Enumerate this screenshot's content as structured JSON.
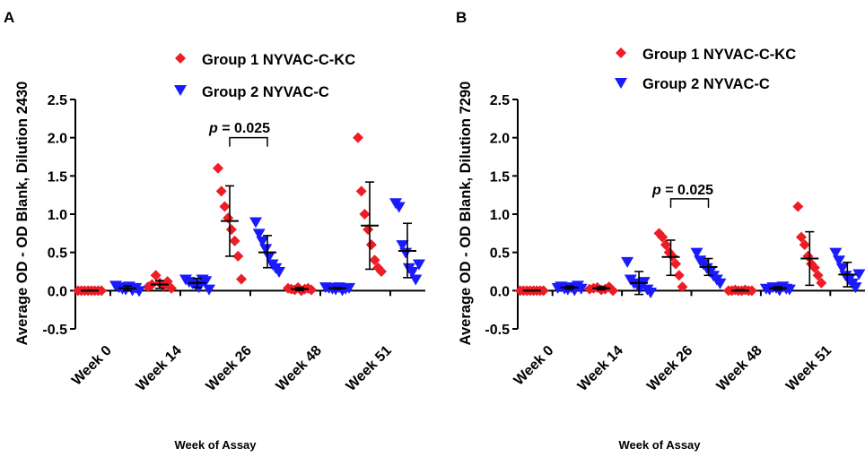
{
  "colors": {
    "group1": "#ee1c25",
    "group2": "#1a1aff",
    "axis": "#000000",
    "errorbar": "#000000"
  },
  "chart_data": [
    {
      "panel": "A",
      "type": "scatter",
      "xlabel": "Week of Assay",
      "ylabel": "Average OD - OD Blank, Dilution 2430",
      "categories": [
        "Week 0",
        "Week 14",
        "Week 26",
        "Week 48",
        "Week 51"
      ],
      "ylim": [
        -0.5,
        2.5
      ],
      "yticks": [
        "-0.5",
        "0.0",
        "0.5",
        "1.0",
        "1.5",
        "2.0",
        "2.5"
      ],
      "legend_position": "top-right",
      "series": [
        {
          "name": "Group 1 NYVAC-C-KC",
          "marker": "diamond",
          "color": "#ee1c25",
          "points": [
            [
              0.0,
              0.0,
              0.0,
              0.0,
              0.0,
              0.0,
              0.0,
              0.0
            ],
            [
              0.05,
              0.08,
              0.2,
              0.1,
              0.06,
              0.12,
              0.03
            ],
            [
              1.6,
              1.3,
              1.1,
              0.95,
              0.8,
              0.65,
              0.45,
              0.15
            ],
            [
              0.03,
              0.02,
              0.01,
              0.04,
              0.0,
              0.02,
              0.03,
              0.01
            ],
            [
              2.0,
              1.3,
              1.0,
              0.8,
              0.6,
              0.4,
              0.3,
              0.25
            ]
          ],
          "mean": [
            0.0,
            0.08,
            0.91,
            0.02,
            0.85
          ],
          "sd_low": [
            0.0,
            0.03,
            0.45,
            0.0,
            0.28
          ],
          "sd_high": [
            0.0,
            0.13,
            1.37,
            0.04,
            1.42
          ]
        },
        {
          "name": "Group 2 NYVAC-C",
          "marker": "triangle-down",
          "color": "#1a1aff",
          "points": [
            [
              0.07,
              0.05,
              0.03,
              0.02,
              0.06,
              0.01,
              0.04,
              0.0
            ],
            [
              0.15,
              0.12,
              0.1,
              0.08,
              0.05,
              0.15,
              0.13,
              0.02
            ],
            [
              0.9,
              0.75,
              0.65,
              0.55,
              0.45,
              0.35,
              0.3,
              0.25
            ],
            [
              0.05,
              0.04,
              0.03,
              0.02,
              0.05,
              0.01,
              0.03,
              0.04
            ],
            [
              1.15,
              1.1,
              0.6,
              0.5,
              0.3,
              0.25,
              0.15,
              0.35
            ]
          ],
          "mean": [
            0.03,
            0.1,
            0.5,
            0.03,
            0.52
          ],
          "sd_low": [
            0.0,
            0.04,
            0.3,
            0.02,
            0.17
          ],
          "sd_high": [
            0.06,
            0.16,
            0.72,
            0.04,
            0.88
          ]
        }
      ],
      "annotation": {
        "text_italic": "p",
        "text": " = 0.025",
        "category_index": 2,
        "bracket_y": 2.0
      }
    },
    {
      "panel": "B",
      "type": "scatter",
      "xlabel": "Week of Assay",
      "ylabel": "Average OD - OD Blank, Dilution 7290",
      "categories": [
        "Week 0",
        "Week 14",
        "Week 26",
        "Week 48",
        "Week 51"
      ],
      "ylim": [
        -0.5,
        2.5
      ],
      "yticks": [
        "-0.5",
        "0.0",
        "0.5",
        "1.0",
        "1.5",
        "2.0",
        "2.5"
      ],
      "legend_position": "top-right",
      "series": [
        {
          "name": "Group 1 NYVAC-C-KC",
          "marker": "diamond",
          "color": "#ee1c25",
          "points": [
            [
              0.0,
              0.0,
              0.0,
              0.0,
              0.0,
              0.0,
              0.0,
              0.0
            ],
            [
              0.02,
              0.03,
              0.04,
              0.01,
              0.02,
              0.05,
              0.0
            ],
            [
              0.75,
              0.7,
              0.6,
              0.5,
              0.45,
              0.35,
              0.2,
              0.05
            ],
            [
              0.0,
              0.0,
              0.01,
              0.0,
              0.0,
              0.01,
              0.0,
              0.0
            ],
            [
              1.1,
              0.7,
              0.6,
              0.45,
              0.35,
              0.3,
              0.2,
              0.1
            ]
          ],
          "mean": [
            0.0,
            0.03,
            0.44,
            0.0,
            0.42
          ],
          "sd_low": [
            0.0,
            0.01,
            0.2,
            0.0,
            0.07
          ],
          "sd_high": [
            0.0,
            0.05,
            0.66,
            0.01,
            0.77
          ]
        },
        {
          "name": "Group 2 NYVAC-C",
          "marker": "triangle-down",
          "color": "#1a1aff",
          "points": [
            [
              0.04,
              0.06,
              0.03,
              0.02,
              0.05,
              0.01,
              0.07,
              0.03
            ],
            [
              0.38,
              0.15,
              0.1,
              0.08,
              0.05,
              0.12,
              0.02,
              -0.02
            ],
            [
              0.5,
              0.4,
              0.35,
              0.3,
              0.25,
              0.2,
              0.15,
              0.1
            ],
            [
              0.03,
              0.02,
              0.05,
              0.04,
              0.01,
              0.06,
              0.03,
              0.02
            ],
            [
              0.5,
              0.4,
              0.3,
              0.2,
              0.15,
              0.1,
              0.05,
              0.22
            ]
          ],
          "mean": [
            0.04,
            0.1,
            0.31,
            0.03,
            0.21
          ],
          "sd_low": [
            0.02,
            -0.05,
            0.2,
            0.01,
            0.05
          ],
          "sd_high": [
            0.06,
            0.25,
            0.42,
            0.05,
            0.37
          ]
        }
      ],
      "annotation": {
        "text_italic": "p",
        "text": " = 0.025",
        "category_index": 2,
        "bracket_y": 1.2
      }
    }
  ]
}
